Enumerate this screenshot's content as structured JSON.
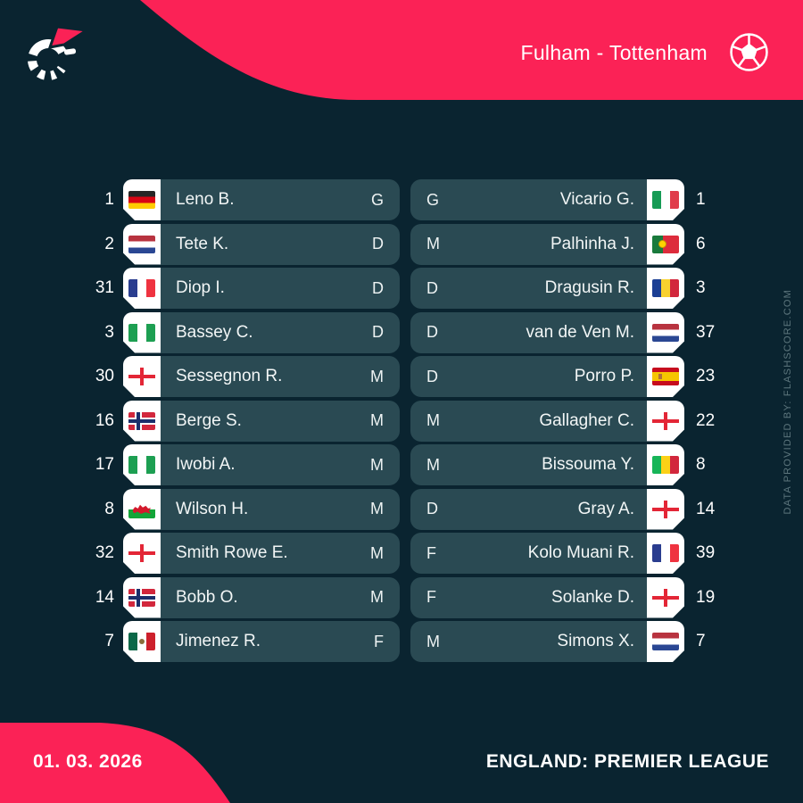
{
  "branding": {
    "accent_color": "#fb2256",
    "background_color": "#0a2430",
    "row_color": "#2a4a53",
    "logo": "flashscore-logo",
    "ball_icon": "soccer-ball-icon"
  },
  "header": {
    "matchup": "Fulham - Tottenham"
  },
  "footer": {
    "date": "01. 03. 2026",
    "competition": "ENGLAND: PREMIER LEAGUE"
  },
  "watermark": "DATA PROVIDED BY: FLASHSCORE.COM",
  "home": {
    "team": "Fulham",
    "players": [
      {
        "num": "1",
        "nat": "germany",
        "name": "Leno B.",
        "pos": "G"
      },
      {
        "num": "2",
        "nat": "netherlands",
        "name": "Tete K.",
        "pos": "D"
      },
      {
        "num": "31",
        "nat": "france",
        "name": "Diop I.",
        "pos": "D"
      },
      {
        "num": "3",
        "nat": "nigeria",
        "name": "Bassey C.",
        "pos": "D"
      },
      {
        "num": "30",
        "nat": "england",
        "name": "Sessegnon R.",
        "pos": "M"
      },
      {
        "num": "16",
        "nat": "norway",
        "name": "Berge S.",
        "pos": "M"
      },
      {
        "num": "17",
        "nat": "nigeria",
        "name": "Iwobi A.",
        "pos": "M"
      },
      {
        "num": "8",
        "nat": "wales",
        "name": "Wilson H.",
        "pos": "M"
      },
      {
        "num": "32",
        "nat": "england",
        "name": "Smith Rowe E.",
        "pos": "M"
      },
      {
        "num": "14",
        "nat": "norway",
        "name": "Bobb O.",
        "pos": "M"
      },
      {
        "num": "7",
        "nat": "mexico",
        "name": "Jimenez R.",
        "pos": "F"
      }
    ]
  },
  "away": {
    "team": "Tottenham",
    "players": [
      {
        "num": "1",
        "nat": "italy",
        "name": "Vicario G.",
        "pos": "G"
      },
      {
        "num": "6",
        "nat": "portugal",
        "name": "Palhinha J.",
        "pos": "M"
      },
      {
        "num": "3",
        "nat": "romania",
        "name": "Dragusin R.",
        "pos": "D"
      },
      {
        "num": "37",
        "nat": "netherlands",
        "name": "van de Ven M.",
        "pos": "D"
      },
      {
        "num": "23",
        "nat": "spain",
        "name": "Porro P.",
        "pos": "D"
      },
      {
        "num": "22",
        "nat": "england",
        "name": "Gallagher C.",
        "pos": "M"
      },
      {
        "num": "8",
        "nat": "mali",
        "name": "Bissouma Y.",
        "pos": "M"
      },
      {
        "num": "14",
        "nat": "england",
        "name": "Gray A.",
        "pos": "D"
      },
      {
        "num": "39",
        "nat": "france",
        "name": "Kolo Muani R.",
        "pos": "F"
      },
      {
        "num": "19",
        "nat": "england",
        "name": "Solanke D.",
        "pos": "F"
      },
      {
        "num": "7",
        "nat": "netherlands",
        "name": "Simons X.",
        "pos": "M"
      }
    ]
  }
}
